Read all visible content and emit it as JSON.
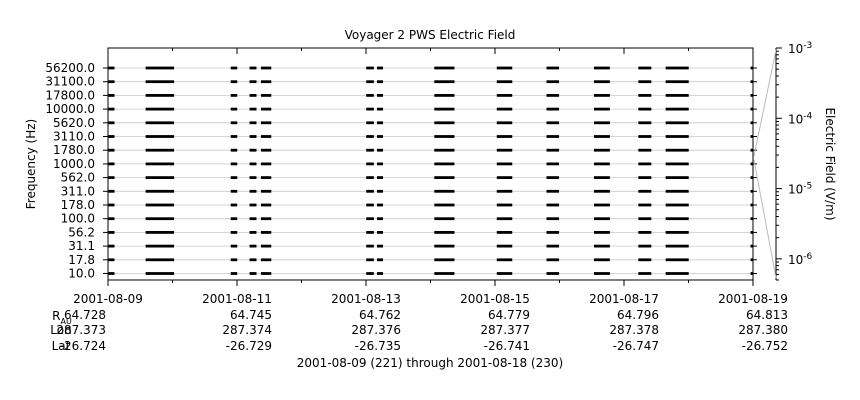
{
  "chart_data": {
    "type": "heatmap",
    "title": "Voyager 2 PWS Electric Field",
    "ylabel": "Frequency (Hz)",
    "colorbar_label": "Electric Field (V/m)",
    "frequency_channels_hz": [
      10.0,
      17.8,
      31.1,
      56.2,
      100.0,
      178.0,
      311.0,
      562.0,
      1000.0,
      1780.0,
      3110.0,
      5620.0,
      10000.0,
      17800.0,
      31100.0,
      56200.0
    ],
    "y_tick_labels": [
      "10.0",
      "17.8",
      "31.1",
      "56.2",
      "100.0",
      "178.0",
      "311.0",
      "562.0",
      "1000.0",
      "1780.0",
      "3110.0",
      "5620.0",
      "10000.0",
      "17800.0",
      "31100.0",
      "56200.0"
    ],
    "colorbar_scale": "log",
    "colorbar_range": [
      5e-07,
      0.001
    ],
    "colorbar_ticks": [
      {
        "mantissa": "10",
        "exponent": "-3",
        "value": 0.001
      },
      {
        "mantissa": "10",
        "exponent": "-4",
        "value": 0.0001
      },
      {
        "mantissa": "10",
        "exponent": "-5",
        "value": 1e-05
      },
      {
        "mantissa": "10",
        "exponent": "-6",
        "value": 1e-06
      }
    ],
    "x_range_days": [
      "2001-08-09",
      "2001-08-19"
    ],
    "x_ticks": [
      {
        "date": "2001-08-09",
        "label": "2001-08-09",
        "r_au": "64.728",
        "lon": "287.373",
        "lat": "-26.724"
      },
      {
        "date": "2001-08-11",
        "label": "2001-08-11",
        "r_au": "64.745",
        "lon": "287.374",
        "lat": "-26.729"
      },
      {
        "date": "2001-08-13",
        "label": "2001-08-13",
        "r_au": "64.762",
        "lon": "287.376",
        "lat": "-26.735"
      },
      {
        "date": "2001-08-15",
        "label": "2001-08-15",
        "r_au": "64.779",
        "lon": "287.377",
        "lat": "-26.741"
      },
      {
        "date": "2001-08-17",
        "label": "2001-08-17",
        "r_au": "64.796",
        "lon": "287.378",
        "lat": "-26.747"
      },
      {
        "date": "2001-08-19",
        "label": "2001-08-19",
        "r_au": "64.813",
        "lon": "287.380",
        "lat": "-26.752"
      }
    ],
    "minor_x_ticks": [
      "2001-08-10",
      "2001-08-12",
      "2001-08-14",
      "2001-08-16",
      "2001-08-18"
    ],
    "row_labels": {
      "r_main": "R",
      "r_sub": "AU",
      "lon": "Lon",
      "lat": "Lat"
    },
    "data_segments": [
      {
        "start": "2001-08-09T00:05",
        "end": "2001-08-09T02:25"
      },
      {
        "start": "2001-08-09T14:00",
        "end": "2001-08-10T00:35"
      },
      {
        "start": "2001-08-10T21:40",
        "end": "2001-08-11T00:05"
      },
      {
        "start": "2001-08-11T04:40",
        "end": "2001-08-11T07:15"
      },
      {
        "start": "2001-08-11T08:55",
        "end": "2001-08-11T12:45"
      },
      {
        "start": "2001-08-13T00:05",
        "end": "2001-08-13T02:55"
      },
      {
        "start": "2001-08-13T04:05",
        "end": "2001-08-13T06:20"
      },
      {
        "start": "2001-08-14T01:25",
        "end": "2001-08-14T08:55"
      },
      {
        "start": "2001-08-15T00:40",
        "end": "2001-08-15T06:25"
      },
      {
        "start": "2001-08-15T19:10",
        "end": "2001-08-15T23:50"
      },
      {
        "start": "2001-08-16T12:50",
        "end": "2001-08-16T18:45"
      },
      {
        "start": "2001-08-17T05:20",
        "end": "2001-08-17T10:10"
      },
      {
        "start": "2001-08-17T15:30",
        "end": "2001-08-18T00:05"
      },
      {
        "start": "2001-08-18T23:05",
        "end": "2001-08-19T00:00"
      }
    ],
    "footer": "2001-08-09 (221) through 2001-08-18 (230)"
  }
}
